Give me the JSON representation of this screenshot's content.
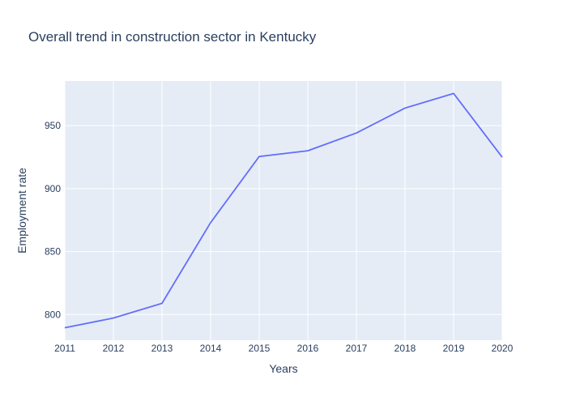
{
  "chart_data": {
    "type": "line",
    "title": "Overall trend in construction sector in Kentucky",
    "xlabel": "Years",
    "ylabel": "Employment rate",
    "x": [
      2011,
      2012,
      2013,
      2014,
      2015,
      2016,
      2017,
      2018,
      2019,
      2020
    ],
    "series": [
      {
        "name": "Employment rate",
        "values": [
          789.5,
          797.2,
          808.9,
          873.0,
          925.5,
          930.1,
          944.2,
          964.0,
          975.6,
          925.0
        ]
      }
    ],
    "xlim": [
      2011,
      2020
    ],
    "ylim": [
      779.6,
      985.5
    ],
    "yticks": [
      800,
      850,
      900,
      950
    ],
    "xticks": [
      2011,
      2012,
      2013,
      2014,
      2015,
      2016,
      2017,
      2018,
      2019,
      2020
    ],
    "colors": {
      "line": "#636efa",
      "plot_bg": "#e5ecf6",
      "grid": "#ffffff",
      "text": "#2a3f5f"
    }
  }
}
